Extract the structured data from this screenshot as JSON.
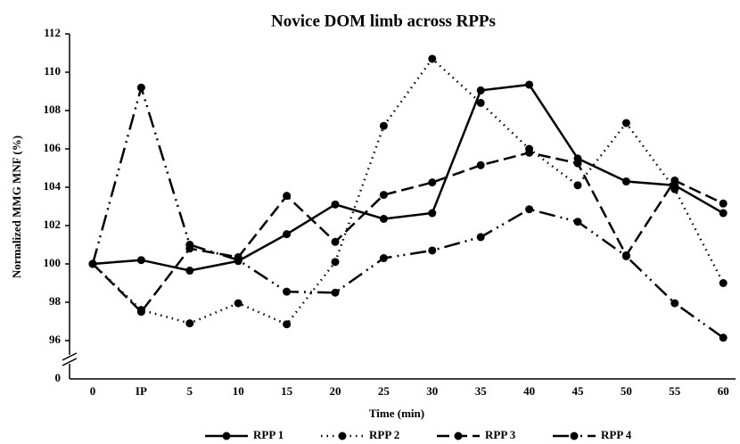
{
  "chart_data": {
    "type": "line",
    "title": "Novice DOM limb across RPPs",
    "x_label": "Time (min)",
    "y_label": "Normalized MMG MNF (%)",
    "categories": [
      "0",
      "IP",
      "5",
      "10",
      "15",
      "20",
      "25",
      "30",
      "35",
      "40",
      "45",
      "50",
      "55",
      "60"
    ],
    "series": [
      {
        "name": "RPP 1",
        "color": "#000000",
        "dash": "solid",
        "values": [
          100,
          100.2,
          99.65,
          100.15,
          101.55,
          103.1,
          102.35,
          102.65,
          109.05,
          109.35,
          105.5,
          104.3,
          104.1,
          102.65
        ]
      },
      {
        "name": "RPP 2",
        "color": "#000000",
        "dash": "dotted",
        "values": [
          100,
          97.6,
          96.9,
          97.95,
          96.85,
          100.1,
          107.2,
          110.7,
          108.4,
          106.0,
          104.1,
          107.35,
          103.9,
          99.0
        ]
      },
      {
        "name": "RPP 3",
        "color": "#000000",
        "dash": "dashed",
        "values": [
          100,
          97.5,
          100.8,
          100.35,
          103.55,
          101.15,
          103.6,
          104.25,
          105.15,
          105.8,
          105.25,
          100.45,
          104.35,
          103.15
        ]
      },
      {
        "name": "RPP 4",
        "color": "#000000",
        "dash": "dashdot",
        "values": [
          100,
          109.2,
          101,
          100.2,
          98.55,
          98.5,
          100.3,
          100.7,
          101.4,
          102.85,
          102.2,
          100.4,
          97.95,
          96.15
        ]
      }
    ],
    "ylim": [
      94,
      112
    ],
    "yticks": [
      96,
      98,
      100,
      102,
      104,
      106,
      108,
      110,
      112
    ],
    "y_break_tick": 0,
    "legend": "bottom"
  }
}
